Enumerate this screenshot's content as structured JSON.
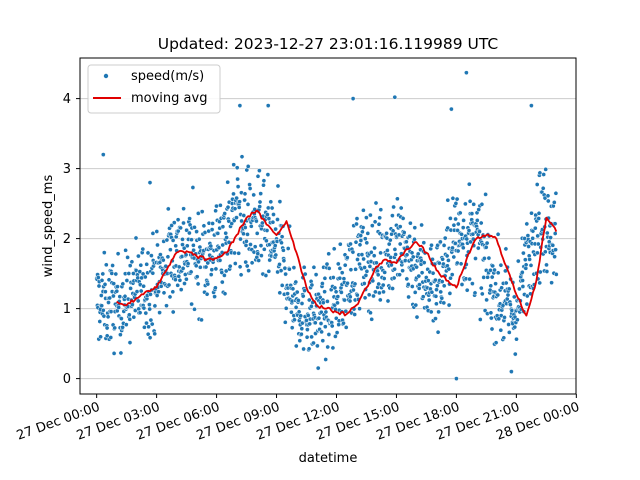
{
  "chart_data": {
    "type": "scatter",
    "title": "Updated: 2023-12-27 23:01:16.119989 UTC",
    "xlabel": "datetime",
    "ylabel": "wind_speed_ms",
    "x_range": [
      "2023-12-26T23:10",
      "2023-12-27T23:59"
    ],
    "ylim": [
      -0.22,
      4.58
    ],
    "x_ticks": [
      {
        "value": "2023-12-27T00:00",
        "label": "27 Dec 00:00"
      },
      {
        "value": "2023-12-27T03:00",
        "label": "27 Dec 03:00"
      },
      {
        "value": "2023-12-27T06:00",
        "label": "27 Dec 06:00"
      },
      {
        "value": "2023-12-27T09:00",
        "label": "27 Dec 09:00"
      },
      {
        "value": "2023-12-27T12:00",
        "label": "27 Dec 12:00"
      },
      {
        "value": "2023-12-27T15:00",
        "label": "27 Dec 15:00"
      },
      {
        "value": "2023-12-27T18:00",
        "label": "27 Dec 18:00"
      },
      {
        "value": "2023-12-27T21:00",
        "label": "27 Dec 21:00"
      },
      {
        "value": "2023-12-28T00:00",
        "label": "28 Dec 00:00"
      }
    ],
    "y_ticks": [
      0,
      1,
      2,
      3,
      4
    ],
    "grid": "horizontal",
    "legend_position": "top-left",
    "colors": {
      "scatter": "#1f77b4",
      "moving_avg": "#e00000",
      "grid": "#cccccc"
    },
    "series": [
      {
        "name": "speed(m/s)",
        "kind": "scatter",
        "x_start": "2023-12-27T00:00",
        "x_end": "2023-12-27T23:00",
        "trend": [
          [
            "2023-12-27T00:00",
            1.1
          ],
          [
            "2023-12-27T01:00",
            1.05
          ],
          [
            "2023-12-27T02:00",
            1.25
          ],
          [
            "2023-12-27T03:00",
            1.4
          ],
          [
            "2023-12-27T04:00",
            1.85
          ],
          [
            "2023-12-27T05:00",
            1.75
          ],
          [
            "2023-12-27T06:00",
            1.8
          ],
          [
            "2023-12-27T07:00",
            2.35
          ],
          [
            "2023-12-27T08:00",
            2.1
          ],
          [
            "2023-12-27T09:00",
            1.9
          ],
          [
            "2023-12-27T10:00",
            1.05
          ],
          [
            "2023-12-27T11:00",
            0.9
          ],
          [
            "2023-12-27T12:00",
            1.1
          ],
          [
            "2023-12-27T13:00",
            1.65
          ],
          [
            "2023-12-27T14:00",
            1.7
          ],
          [
            "2023-12-27T15:00",
            1.95
          ],
          [
            "2023-12-27T16:00",
            1.6
          ],
          [
            "2023-12-27T17:00",
            1.3
          ],
          [
            "2023-12-27T18:00",
            2.05
          ],
          [
            "2023-12-27T19:00",
            1.95
          ],
          [
            "2023-12-27T20:00",
            1.2
          ],
          [
            "2023-12-27T21:00",
            0.9
          ],
          [
            "2023-12-27T22:00",
            2.3
          ],
          [
            "2023-12-27T23:00",
            2.1
          ]
        ],
        "spread": 0.45,
        "outliers": [
          [
            "2023-12-27T00:20",
            3.2
          ],
          [
            "2023-12-27T02:40",
            2.8
          ],
          [
            "2023-12-27T07:10",
            3.9
          ],
          [
            "2023-12-27T08:35",
            3.9
          ],
          [
            "2023-12-27T12:50",
            4.0
          ],
          [
            "2023-12-27T14:55",
            4.02
          ],
          [
            "2023-12-27T17:45",
            3.85
          ],
          [
            "2023-12-27T18:30",
            4.37
          ],
          [
            "2023-12-27T18:00",
            0.0
          ],
          [
            "2023-12-27T21:45",
            3.9
          ],
          [
            "2023-12-27T20:45",
            0.1
          ],
          [
            "2023-12-27T11:05",
            0.15
          ]
        ]
      },
      {
        "name": "moving avg",
        "kind": "line",
        "x": [
          "2023-12-27T01:00",
          "2023-12-27T01:30",
          "2023-12-27T02:00",
          "2023-12-27T02:30",
          "2023-12-27T03:00",
          "2023-12-27T03:30",
          "2023-12-27T04:00",
          "2023-12-27T04:30",
          "2023-12-27T05:00",
          "2023-12-27T05:30",
          "2023-12-27T06:00",
          "2023-12-27T06:30",
          "2023-12-27T07:00",
          "2023-12-27T07:30",
          "2023-12-27T08:00",
          "2023-12-27T08:30",
          "2023-12-27T09:00",
          "2023-12-27T09:30",
          "2023-12-27T10:00",
          "2023-12-27T10:30",
          "2023-12-27T11:00",
          "2023-12-27T11:30",
          "2023-12-27T12:00",
          "2023-12-27T12:30",
          "2023-12-27T13:00",
          "2023-12-27T13:30",
          "2023-12-27T14:00",
          "2023-12-27T14:30",
          "2023-12-27T15:00",
          "2023-12-27T15:30",
          "2023-12-27T16:00",
          "2023-12-27T16:30",
          "2023-12-27T17:00",
          "2023-12-27T17:30",
          "2023-12-27T18:00",
          "2023-12-27T18:30",
          "2023-12-27T19:00",
          "2023-12-27T19:30",
          "2023-12-27T20:00",
          "2023-12-27T20:30",
          "2023-12-27T21:00",
          "2023-12-27T21:30",
          "2023-12-27T22:00",
          "2023-12-27T22:30",
          "2023-12-27T23:00"
        ],
        "values": [
          1.1,
          1.05,
          1.15,
          1.25,
          1.3,
          1.55,
          1.8,
          1.82,
          1.75,
          1.7,
          1.72,
          1.8,
          2.05,
          2.3,
          2.4,
          2.2,
          2.05,
          2.25,
          1.8,
          1.3,
          1.05,
          1.0,
          0.95,
          0.92,
          1.05,
          1.3,
          1.6,
          1.7,
          1.65,
          1.85,
          1.95,
          1.8,
          1.55,
          1.4,
          1.3,
          1.7,
          2.0,
          2.05,
          2.0,
          1.6,
          1.2,
          0.9,
          1.4,
          2.3,
          2.1
        ]
      }
    ]
  }
}
